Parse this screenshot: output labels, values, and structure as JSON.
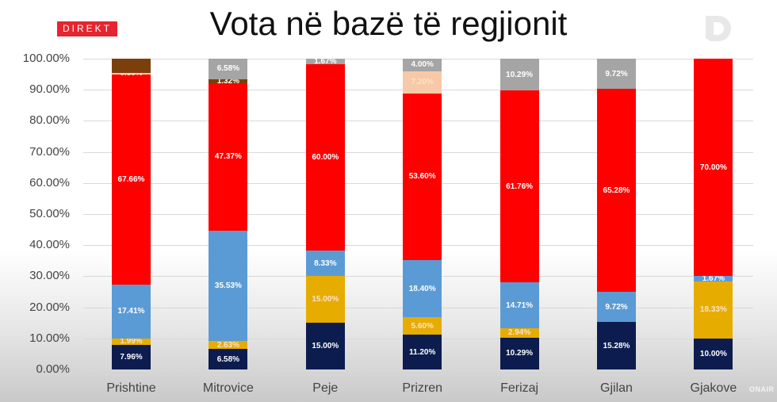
{
  "header": {
    "badge": "DIREKT",
    "title": "Vota në bazë të regjionit",
    "watermark": "ONAIR"
  },
  "colors": {
    "navy": "#0c1c4e",
    "gold": "#e6ac00",
    "blue": "#5b9bd5",
    "red": "#ff0000",
    "brown": "#7b3f0c",
    "peach": "#f8c9a8",
    "gray": "#a5a5a5"
  },
  "chart_data": {
    "type": "bar",
    "stacked": true,
    "title": "Vota në bazë të regjionit",
    "xlabel": "",
    "ylabel": "",
    "ylim": [
      0,
      100
    ],
    "yticks": [
      "0.00%",
      "10.00%",
      "20.00%",
      "30.00%",
      "40.00%",
      "50.00%",
      "60.00%",
      "70.00%",
      "80.00%",
      "90.00%",
      "100.00%"
    ],
    "grid": true,
    "legend": "none",
    "categories": [
      "Prishtine",
      "Mitrovice",
      "Peje",
      "Prizren",
      "Ferizaj",
      "Gjilan",
      "Gjakove"
    ],
    "series": [
      {
        "name": "navy",
        "color": "#0c1c4e",
        "values": [
          7.96,
          6.58,
          15.0,
          11.2,
          10.29,
          15.28,
          10.0
        ]
      },
      {
        "name": "gold",
        "color": "#e6ac00",
        "values": [
          1.99,
          2.63,
          15.0,
          5.6,
          2.94,
          0,
          18.33
        ]
      },
      {
        "name": "blue",
        "color": "#5b9bd5",
        "values": [
          17.41,
          35.53,
          8.33,
          18.4,
          14.71,
          9.72,
          1.67
        ]
      },
      {
        "name": "red",
        "color": "#ff0000",
        "values": [
          67.66,
          47.37,
          60.0,
          53.6,
          61.76,
          65.28,
          70.0
        ]
      },
      {
        "name": "peach",
        "color": "#f8c9a8",
        "values": [
          0.5,
          0,
          0,
          7.2,
          0,
          0,
          0
        ]
      },
      {
        "name": "brown",
        "color": "#7b3f0c",
        "values": [
          4.48,
          1.32,
          0,
          0,
          0,
          0,
          0
        ]
      },
      {
        "name": "gray",
        "color": "#a5a5a5",
        "values": [
          0,
          6.58,
          1.67,
          4.0,
          10.29,
          9.72,
          0
        ]
      }
    ],
    "labels": [
      [
        [
          "7.96%"
        ],
        [
          "1.99%"
        ],
        [
          "17.41%"
        ],
        [
          "67.66%"
        ],
        [
          "0.50%"
        ],
        [
          ""
        ],
        [
          ""
        ]
      ],
      [
        [
          "6.58%"
        ],
        [
          "2.63%"
        ],
        [
          "35.53%"
        ],
        [
          "47.37%"
        ],
        [
          ""
        ],
        [
          "1.32%"
        ],
        [
          "6.58%"
        ]
      ],
      [
        [
          "15.00%"
        ],
        [
          "15.00%"
        ],
        [
          "8.33%"
        ],
        [
          "60.00%"
        ],
        [
          ""
        ],
        [
          ""
        ],
        [
          "1.67%"
        ]
      ],
      [
        [
          "11.20%"
        ],
        [
          "5.60%"
        ],
        [
          "18.40%"
        ],
        [
          "53.60%"
        ],
        [
          "7.20%"
        ],
        [
          ""
        ],
        [
          "4.00%"
        ]
      ],
      [
        [
          "10.29%"
        ],
        [
          "2.94%"
        ],
        [
          "14.71%"
        ],
        [
          "61.76%"
        ],
        [
          ""
        ],
        [
          ""
        ],
        [
          "10.29%"
        ]
      ],
      [
        [
          "15.28%"
        ],
        [
          ""
        ],
        [
          "9.72%"
        ],
        [
          "65.28%"
        ],
        [
          ""
        ],
        [
          ""
        ],
        [
          "9.72%"
        ]
      ],
      [
        [
          "10.00%"
        ],
        [
          "18.33%"
        ],
        [
          "1.67%"
        ],
        [
          "70.00%"
        ],
        [
          ""
        ],
        [
          ""
        ],
        [
          ""
        ]
      ]
    ]
  }
}
